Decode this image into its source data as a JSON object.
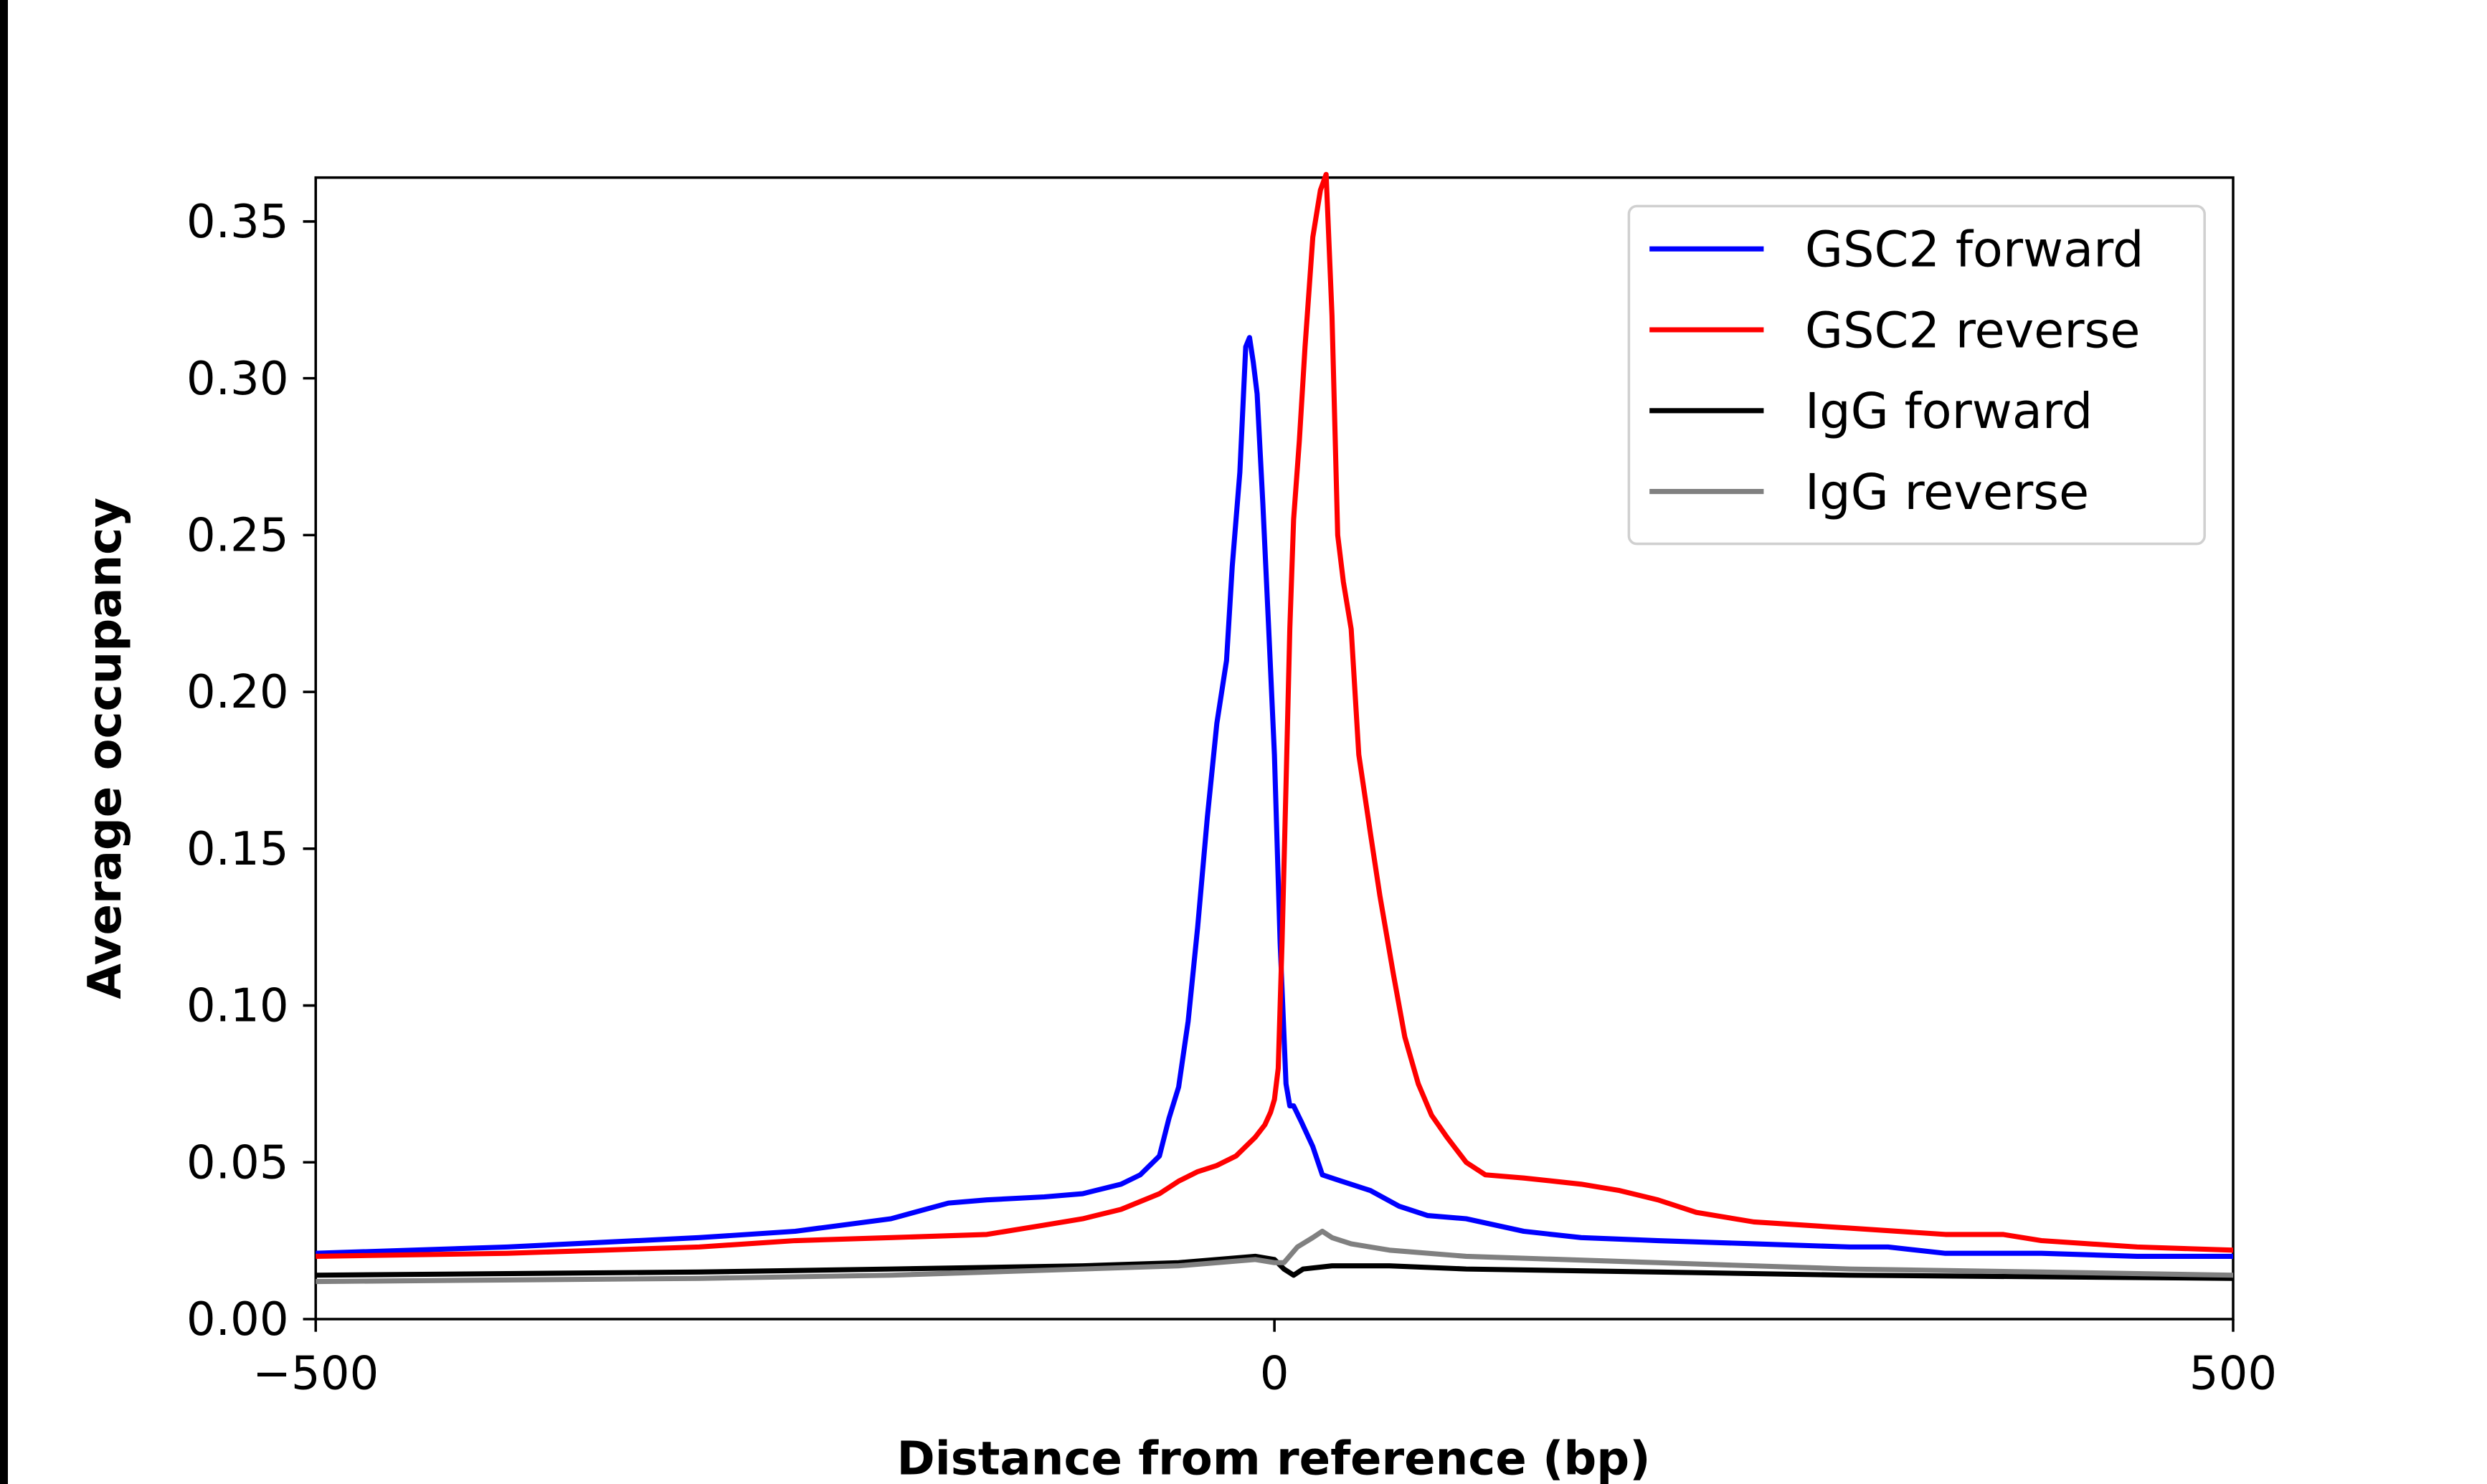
{
  "chart_data": {
    "type": "line",
    "title": "",
    "xlabel": "Distance from reference (bp)",
    "ylabel": "Average occupancy",
    "xlim": [
      -500,
      500
    ],
    "ylim": [
      0,
      0.364
    ],
    "xticks": [
      -500,
      0,
      500
    ],
    "xtick_labels": [
      "−500",
      "0",
      "500"
    ],
    "yticks": [
      0,
      0.05,
      0.1,
      0.15,
      0.2,
      0.25,
      0.3,
      0.35
    ],
    "ytick_labels": [
      "0.00",
      "0.05",
      "0.10",
      "0.15",
      "0.20",
      "0.25",
      "0.30",
      "0.35"
    ],
    "grid": false,
    "legend_position": "top-right",
    "series": [
      {
        "name": "GSC2 forward",
        "color": "#0000ff",
        "x": [
          -500,
          -400,
          -300,
          -250,
          -200,
          -170,
          -150,
          -120,
          -100,
          -80,
          -70,
          -60,
          -55,
          -50,
          -45,
          -40,
          -35,
          -30,
          -25,
          -22,
          -18,
          -15,
          -13,
          -11,
          -9,
          -6,
          -3,
          0,
          3,
          6,
          8,
          10,
          14,
          20,
          25,
          35,
          50,
          65,
          80,
          100,
          130,
          160,
          200,
          250,
          300,
          320,
          350,
          400,
          450,
          500
        ],
        "y": [
          0.021,
          0.023,
          0.026,
          0.028,
          0.032,
          0.037,
          0.038,
          0.039,
          0.04,
          0.043,
          0.046,
          0.052,
          0.064,
          0.074,
          0.095,
          0.125,
          0.16,
          0.19,
          0.21,
          0.24,
          0.27,
          0.31,
          0.313,
          0.305,
          0.295,
          0.26,
          0.22,
          0.18,
          0.12,
          0.075,
          0.068,
          0.068,
          0.063,
          0.055,
          0.046,
          0.044,
          0.041,
          0.036,
          0.033,
          0.032,
          0.028,
          0.026,
          0.025,
          0.024,
          0.023,
          0.023,
          0.021,
          0.021,
          0.02,
          0.02
        ]
      },
      {
        "name": "GSC2 reverse",
        "color": "#ff0000",
        "x": [
          -500,
          -400,
          -300,
          -250,
          -200,
          -150,
          -120,
          -100,
          -80,
          -60,
          -50,
          -40,
          -30,
          -20,
          -10,
          -5,
          -2,
          0,
          2,
          4,
          6,
          8,
          10,
          13,
          16,
          20,
          24,
          27,
          30,
          33,
          36,
          40,
          44,
          50,
          55,
          62,
          68,
          75,
          82,
          90,
          100,
          110,
          130,
          160,
          180,
          200,
          220,
          250,
          300,
          350,
          380,
          400,
          450,
          500
        ],
        "y": [
          0.02,
          0.021,
          0.023,
          0.025,
          0.026,
          0.027,
          0.03,
          0.032,
          0.035,
          0.04,
          0.044,
          0.047,
          0.049,
          0.052,
          0.058,
          0.062,
          0.066,
          0.07,
          0.08,
          0.12,
          0.17,
          0.22,
          0.255,
          0.28,
          0.31,
          0.345,
          0.36,
          0.365,
          0.32,
          0.25,
          0.235,
          0.22,
          0.18,
          0.155,
          0.135,
          0.11,
          0.09,
          0.075,
          0.065,
          0.058,
          0.05,
          0.046,
          0.045,
          0.043,
          0.041,
          0.038,
          0.034,
          0.031,
          0.029,
          0.027,
          0.027,
          0.025,
          0.023,
          0.022
        ]
      },
      {
        "name": "IgG forward",
        "color": "#000000",
        "x": [
          -500,
          -300,
          -200,
          -100,
          -50,
          -10,
          0,
          5,
          10,
          15,
          30,
          60,
          100,
          200,
          300,
          500
        ],
        "y": [
          0.014,
          0.015,
          0.016,
          0.017,
          0.018,
          0.02,
          0.019,
          0.016,
          0.014,
          0.016,
          0.017,
          0.017,
          0.016,
          0.015,
          0.014,
          0.013
        ]
      },
      {
        "name": "IgG reverse",
        "color": "#808080",
        "x": [
          -500,
          -300,
          -200,
          -100,
          -50,
          -10,
          0,
          5,
          12,
          20,
          25,
          30,
          40,
          60,
          100,
          200,
          300,
          400,
          500
        ],
        "y": [
          0.012,
          0.013,
          0.014,
          0.016,
          0.017,
          0.019,
          0.018,
          0.018,
          0.023,
          0.026,
          0.028,
          0.026,
          0.024,
          0.022,
          0.02,
          0.018,
          0.016,
          0.015,
          0.014
        ]
      }
    ]
  }
}
